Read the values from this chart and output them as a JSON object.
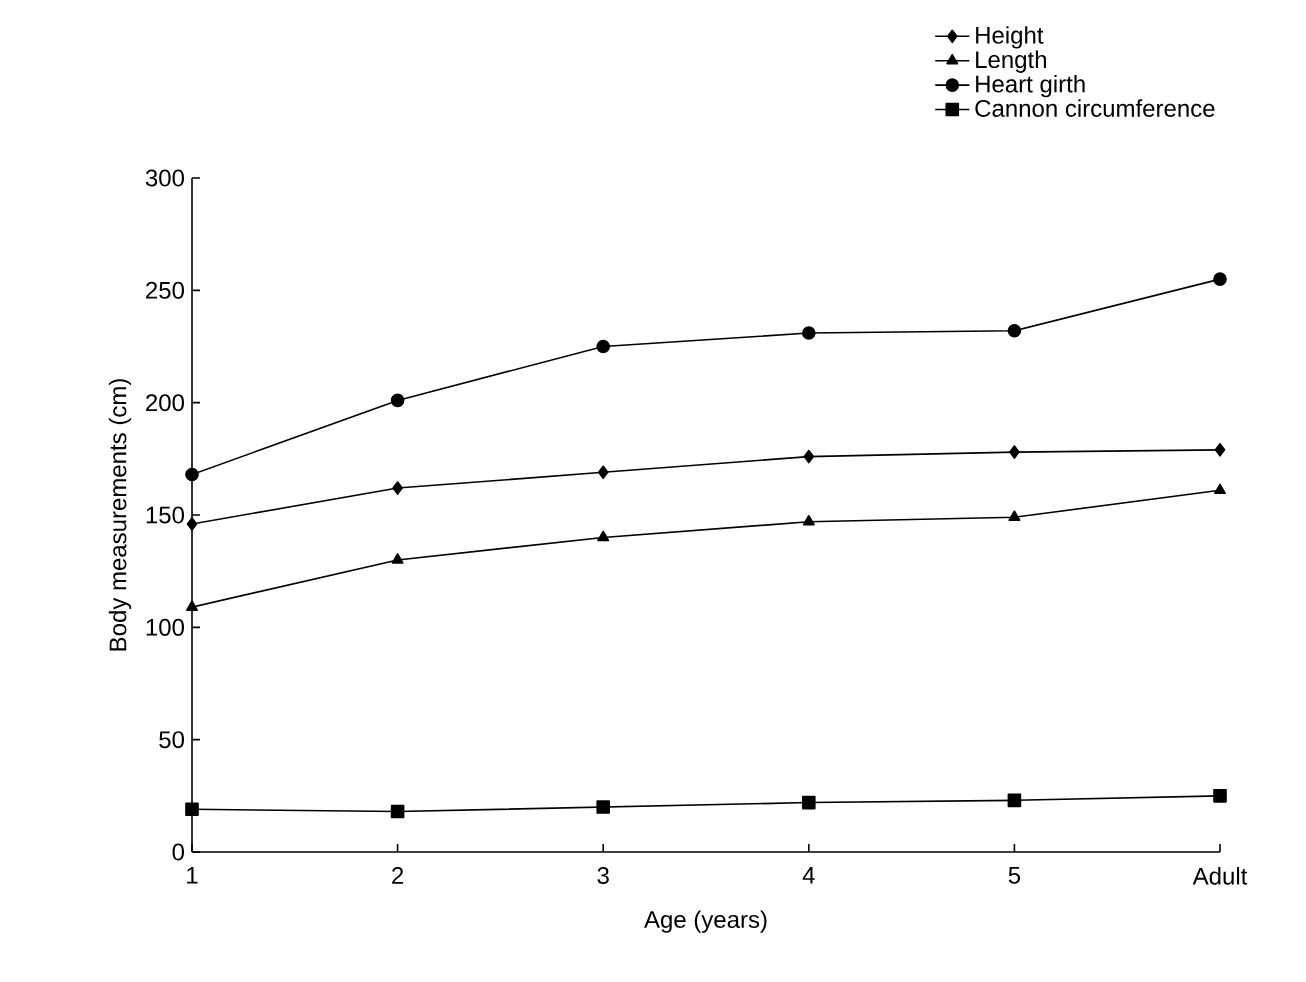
{
  "chart_data": {
    "type": "line",
    "xlabel": "Age (years)",
    "ylabel": "Body measurements (cm)",
    "categories": [
      "1",
      "2",
      "3",
      "4",
      "5",
      "Adult"
    ],
    "series": [
      {
        "name": "Height",
        "color": "#000000",
        "marker": "diamond",
        "values": [
          146,
          162,
          169,
          176,
          178,
          179
        ]
      },
      {
        "name": "Length",
        "color": "#000000",
        "marker": "triangle",
        "values": [
          109,
          130,
          140,
          147,
          149,
          161
        ]
      },
      {
        "name": "Heart girth",
        "color": "#000000",
        "marker": "circle",
        "values": [
          168,
          201,
          225,
          231,
          232,
          255
        ]
      },
      {
        "name": "Cannon circumference",
        "color": "#000000",
        "marker": "square",
        "values": [
          19,
          18,
          20,
          22,
          23,
          25
        ]
      }
    ],
    "ylim": [
      0,
      300
    ],
    "yticks": [
      0,
      50,
      100,
      150,
      200,
      250,
      300
    ],
    "legend": "top right",
    "grid": false,
    "line_style": "solid"
  }
}
